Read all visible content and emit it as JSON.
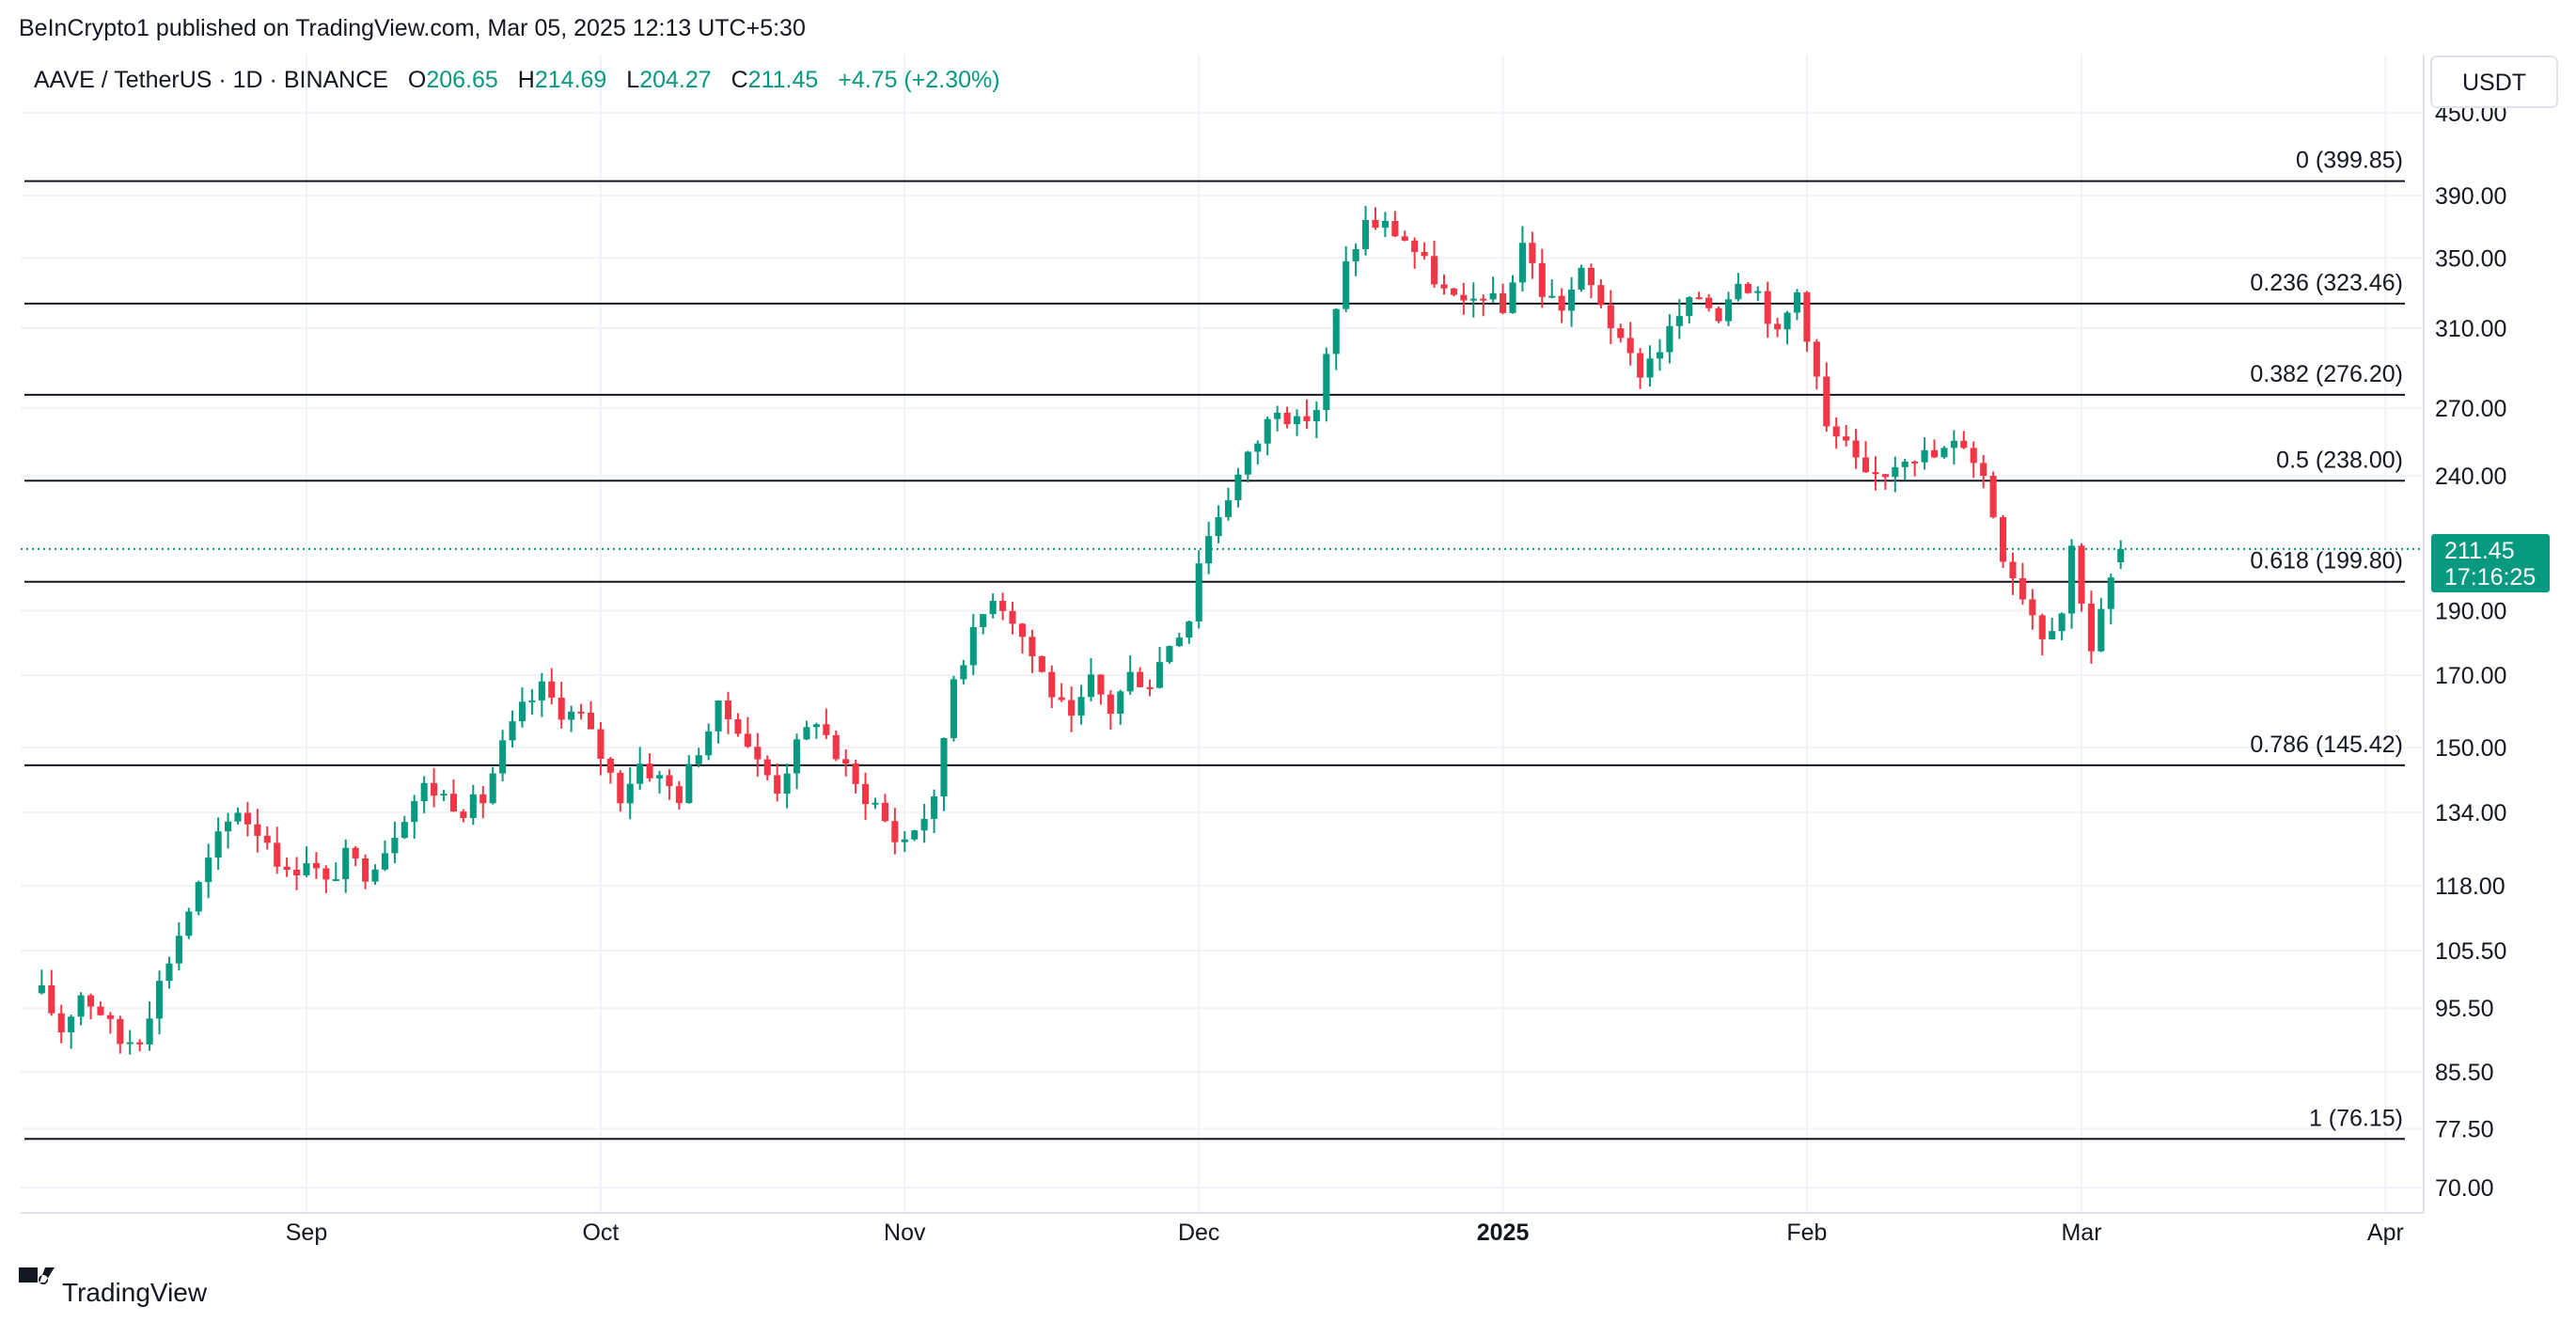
{
  "header": {
    "publisher": "BeInCrypto1 published on TradingView.com, Mar 05, 2025 12:13 UTC+5:30",
    "symbol": "AAVE / TetherUS · 1D · BINANCE",
    "o_label": "O",
    "o_value": "206.65",
    "h_label": "H",
    "h_value": "214.69",
    "l_label": "L",
    "l_value": "204.27",
    "c_label": "C",
    "c_value": "211.45",
    "change": "+4.75 (+2.30%)",
    "currency": "USDT"
  },
  "footer": {
    "logo_icon": "tradingview-logo-icon",
    "logo_text": "TradingView"
  },
  "last_price": {
    "value": "211.45",
    "countdown": "17:16:25"
  },
  "colors": {
    "up": "#089981",
    "down": "#f23645",
    "grid": "#f0f3fa",
    "fib": "#131722",
    "price_line": "#089981"
  },
  "chart_data": {
    "type": "candlestick",
    "scale": "log",
    "interval": "1D",
    "grid": true,
    "y_ticks": [
      "450.00",
      "390.00",
      "350.00",
      "310.00",
      "270.00",
      "240.00",
      "190.00",
      "170.00",
      "150.00",
      "134.00",
      "118.00",
      "105.50",
      "95.50",
      "85.50",
      "77.50",
      "70.00"
    ],
    "x_ticks": [
      {
        "date": "2024-09-01",
        "label": "Sep"
      },
      {
        "date": "2024-10-01",
        "label": "Oct"
      },
      {
        "date": "2024-11-01",
        "label": "Nov"
      },
      {
        "date": "2024-12-01",
        "label": "Dec"
      },
      {
        "date": "2025-01-01",
        "label": "2025"
      },
      {
        "date": "2025-02-01",
        "label": "Feb"
      },
      {
        "date": "2025-03-01",
        "label": "Mar"
      },
      {
        "date": "2025-04-01",
        "label": "Apr"
      }
    ],
    "fib_levels": [
      {
        "ratio": "0",
        "price": 399.85,
        "label": "0 (399.85)"
      },
      {
        "ratio": "0.236",
        "price": 323.46,
        "label": "0.236 (323.46)"
      },
      {
        "ratio": "0.382",
        "price": 276.2,
        "label": "0.382 (276.20)"
      },
      {
        "ratio": "0.5",
        "price": 238.0,
        "label": "0.5 (238.00)"
      },
      {
        "ratio": "0.618",
        "price": 199.8,
        "label": "0.618 (199.80)"
      },
      {
        "ratio": "0.786",
        "price": 145.42,
        "label": "0.786 (145.42)"
      },
      {
        "ratio": "1",
        "price": 76.15,
        "label": "1 (76.15)"
      }
    ],
    "segments": [
      {
        "from": "2024-08-05",
        "to": "2024-08-15",
        "pts": [
          [
            0,
            98
          ],
          [
            2,
            92
          ],
          [
            4,
            98
          ],
          [
            6,
            95
          ],
          [
            8,
            90
          ],
          [
            10,
            91
          ]
        ]
      },
      {
        "from": "2024-08-15",
        "to": "2024-08-28",
        "pts": [
          [
            0,
            91
          ],
          [
            3,
            104
          ],
          [
            6,
            118
          ],
          [
            8,
            128
          ],
          [
            10,
            135
          ],
          [
            11,
            132
          ],
          [
            13,
            128
          ]
        ]
      },
      {
        "from": "2024-08-28",
        "to": "2024-09-15",
        "pts": [
          [
            0,
            128
          ],
          [
            2,
            120
          ],
          [
            4,
            124
          ],
          [
            6,
            118
          ],
          [
            8,
            124
          ],
          [
            10,
            121
          ],
          [
            12,
            126
          ],
          [
            14,
            134
          ],
          [
            16,
            140
          ],
          [
            18,
            138
          ]
        ]
      },
      {
        "from": "2024-09-15",
        "to": "2024-10-01",
        "pts": [
          [
            0,
            138
          ],
          [
            2,
            135
          ],
          [
            4,
            137
          ],
          [
            6,
            150
          ],
          [
            8,
            160
          ],
          [
            10,
            166
          ],
          [
            12,
            160
          ],
          [
            14,
            158
          ],
          [
            16,
            148
          ]
        ]
      },
      {
        "from": "2024-10-01",
        "to": "2024-10-15",
        "pts": [
          [
            0,
            148
          ],
          [
            2,
            138
          ],
          [
            4,
            146
          ],
          [
            6,
            142
          ],
          [
            8,
            138
          ],
          [
            10,
            150
          ],
          [
            12,
            160
          ],
          [
            14,
            156
          ]
        ]
      },
      {
        "from": "2024-10-15",
        "to": "2024-11-01",
        "pts": [
          [
            0,
            156
          ],
          [
            2,
            146
          ],
          [
            4,
            140
          ],
          [
            6,
            150
          ],
          [
            8,
            158
          ],
          [
            10,
            148
          ],
          [
            12,
            140
          ],
          [
            14,
            136
          ],
          [
            16,
            128
          ]
        ]
      },
      {
        "from": "2024-11-01",
        "to": "2024-11-16",
        "pts": [
          [
            0,
            128
          ],
          [
            3,
            136
          ],
          [
            5,
            170
          ],
          [
            7,
            182
          ],
          [
            9,
            196
          ],
          [
            11,
            188
          ],
          [
            13,
            176
          ],
          [
            15,
            165
          ]
        ]
      },
      {
        "from": "2024-11-16",
        "to": "2024-12-01",
        "pts": [
          [
            0,
            165
          ],
          [
            2,
            156
          ],
          [
            4,
            168
          ],
          [
            6,
            160
          ],
          [
            8,
            170
          ],
          [
            10,
            168
          ],
          [
            12,
            180
          ],
          [
            14,
            188
          ],
          [
            15,
            208
          ]
        ]
      },
      {
        "from": "2024-12-01",
        "to": "2024-12-16",
        "pts": [
          [
            0,
            208
          ],
          [
            2,
            225
          ],
          [
            4,
            240
          ],
          [
            6,
            255
          ],
          [
            8,
            272
          ],
          [
            10,
            262
          ],
          [
            12,
            270
          ],
          [
            14,
            318
          ],
          [
            15,
            345
          ]
        ]
      },
      {
        "from": "2024-12-16",
        "to": "2025-01-01",
        "pts": [
          [
            0,
            345
          ],
          [
            2,
            372
          ],
          [
            4,
            370
          ],
          [
            6,
            362
          ],
          [
            8,
            346
          ],
          [
            10,
            330
          ],
          [
            12,
            320
          ],
          [
            14,
            330
          ],
          [
            16,
            318
          ]
        ]
      },
      {
        "from": "2025-01-01",
        "to": "2025-01-15",
        "pts": [
          [
            0,
            318
          ],
          [
            2,
            360
          ],
          [
            4,
            330
          ],
          [
            6,
            322
          ],
          [
            8,
            340
          ],
          [
            10,
            325
          ],
          [
            12,
            300
          ],
          [
            14,
            288
          ]
        ]
      },
      {
        "from": "2025-01-15",
        "to": "2025-02-01",
        "pts": [
          [
            0,
            288
          ],
          [
            2,
            300
          ],
          [
            4,
            316
          ],
          [
            6,
            328
          ],
          [
            8,
            318
          ],
          [
            10,
            340
          ],
          [
            12,
            330
          ],
          [
            14,
            305
          ],
          [
            16,
            330
          ],
          [
            17,
            308
          ]
        ]
      },
      {
        "from": "2025-02-01",
        "to": "2025-02-14",
        "pts": [
          [
            0,
            308
          ],
          [
            2,
            260
          ],
          [
            4,
            252
          ],
          [
            6,
            238
          ],
          [
            8,
            242
          ],
          [
            10,
            250
          ],
          [
            13,
            248
          ]
        ]
      },
      {
        "from": "2025-02-14",
        "to": "2025-03-05",
        "pts": [
          [
            0,
            248
          ],
          [
            3,
            255
          ],
          [
            5,
            240
          ],
          [
            7,
            210
          ],
          [
            9,
            196
          ],
          [
            11,
            183
          ],
          [
            13,
            190
          ],
          [
            14,
            212
          ],
          [
            16,
            178
          ],
          [
            19,
            211
          ]
        ]
      }
    ],
    "last_candle": {
      "open": 206.65,
      "high": 214.69,
      "low": 204.27,
      "close": 211.45
    }
  }
}
